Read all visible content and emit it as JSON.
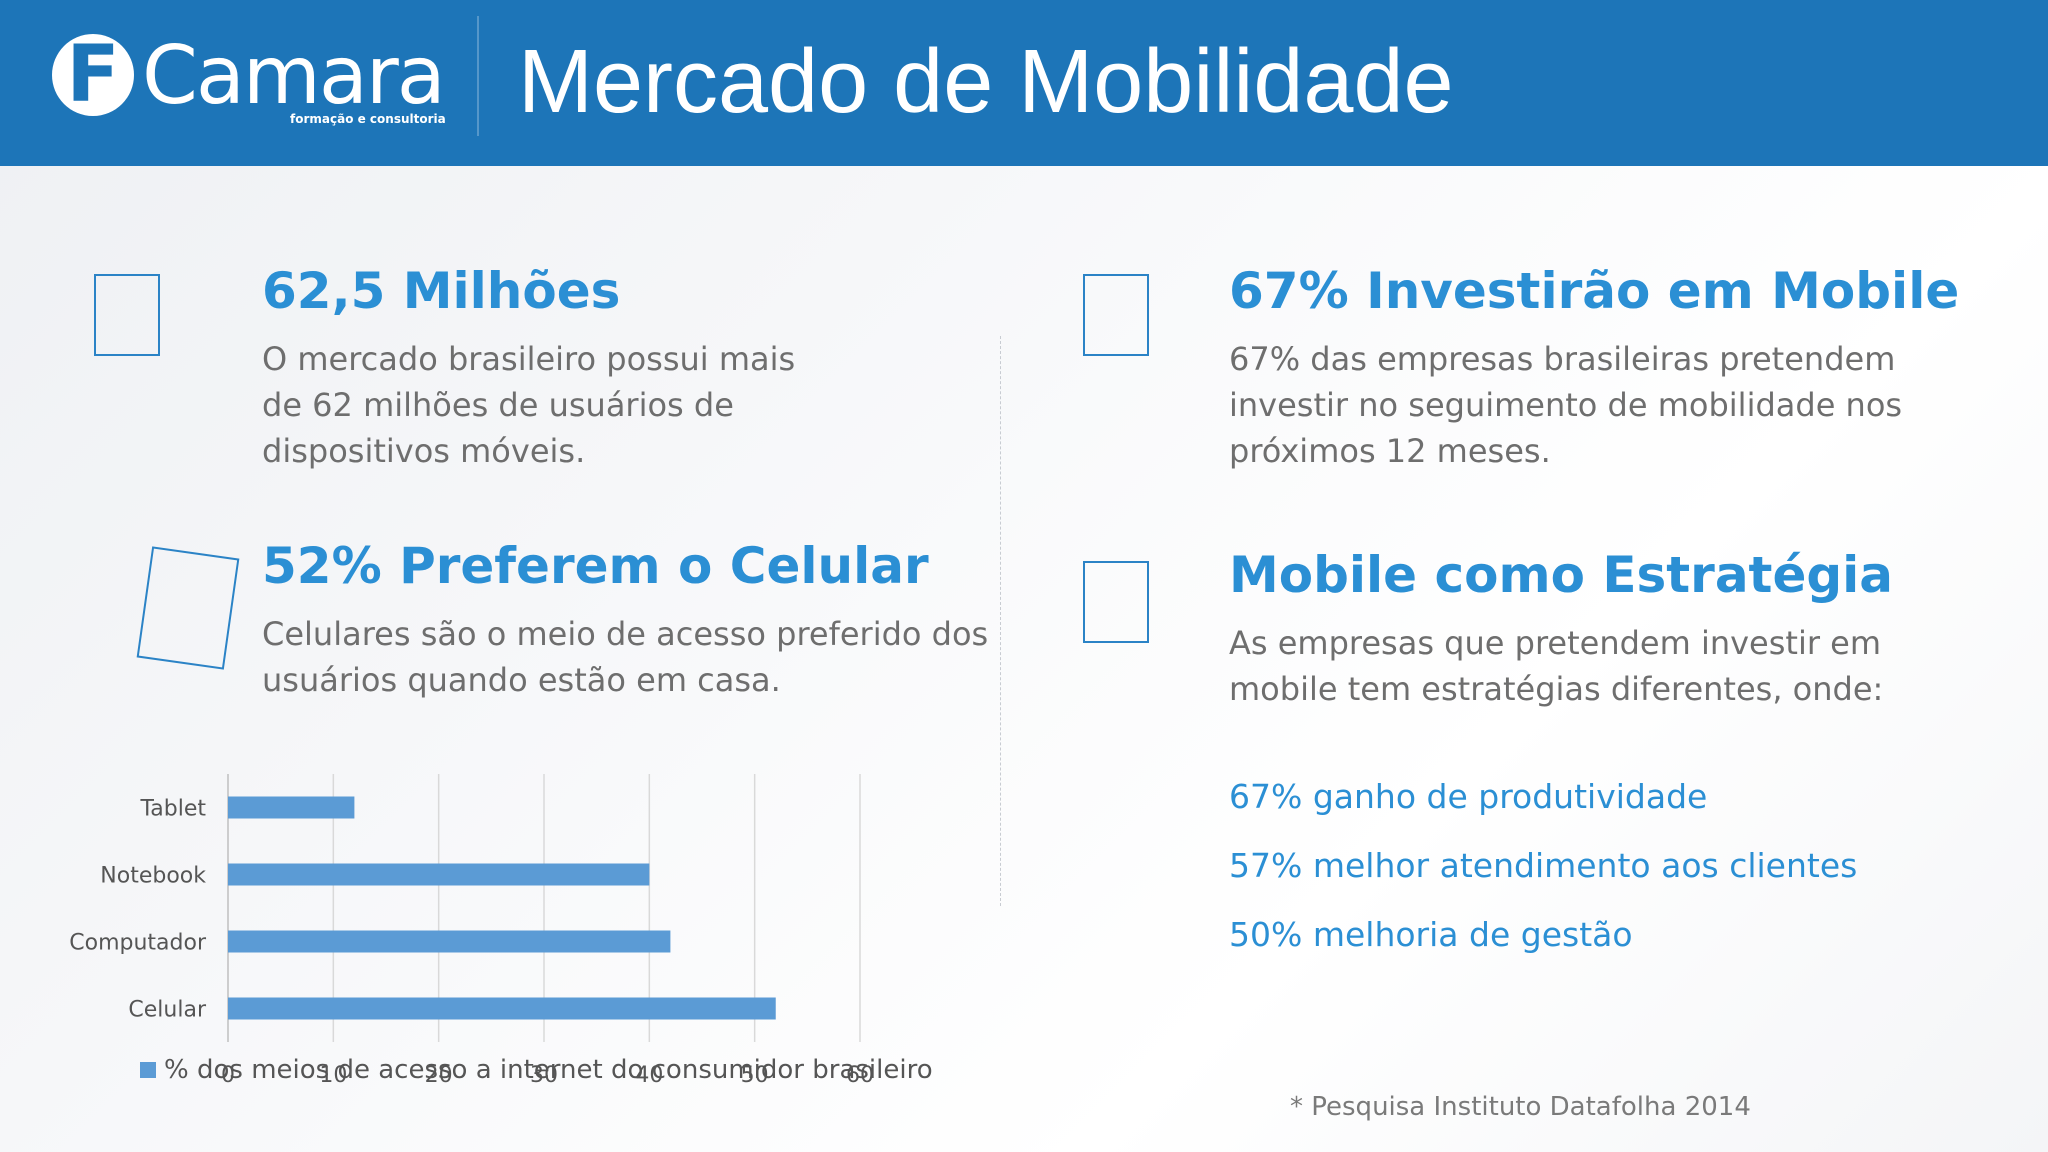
{
  "header": {
    "logo_letter": "F",
    "logo_word": "Camara",
    "logo_tagline": "formação e consultoria",
    "title": "Mercado de Mobilidade"
  },
  "sections": [
    {
      "heading": "62,5 Milhões",
      "lines": [
        "O mercado brasileiro possui mais",
        "de 62 milhões de usuários de",
        "dispositivos móveis."
      ]
    },
    {
      "heading": "52% Preferem o Celular",
      "lines": [
        "Celulares são o meio de acesso preferido dos",
        "usuários quando estão em casa."
      ]
    },
    {
      "heading": "67% Investirão em Mobile",
      "lines": [
        "67% das empresas brasileiras pretendem",
        "investir no seguimento de mobilidade nos",
        "próximos 12 meses."
      ]
    },
    {
      "heading": "Mobile como Estratégia",
      "lines": [
        "As empresas que pretendem investir em",
        "mobile tem estratégias diferentes, onde:"
      ]
    }
  ],
  "strategies": [
    "67% ganho de produtividade",
    "57% melhor atendimento aos clientes",
    "50% melhoria de gestão"
  ],
  "chart_data": {
    "type": "bar",
    "orientation": "horizontal",
    "categories": [
      "Tablet",
      "Notebook",
      "Computador",
      "Celular"
    ],
    "values": [
      12,
      40,
      42,
      52
    ],
    "series": [
      {
        "name": "% dos meios de acesso a internet do consumidor brasileiro",
        "values": [
          12,
          40,
          42,
          52
        ]
      }
    ],
    "x_ticks": [
      "0",
      "10",
      "20",
      "30",
      "40",
      "50",
      "60"
    ],
    "xlim": [
      0,
      60
    ],
    "grid": true,
    "legend_position": "bottom",
    "bar_color": "#5b9bd5"
  },
  "footnote": "* Pesquisa Instituto Datafolha 2014",
  "colors": {
    "header_bg": "#1d75b8",
    "accent": "#2b8fd4",
    "body_text": "#6e6e6e"
  }
}
